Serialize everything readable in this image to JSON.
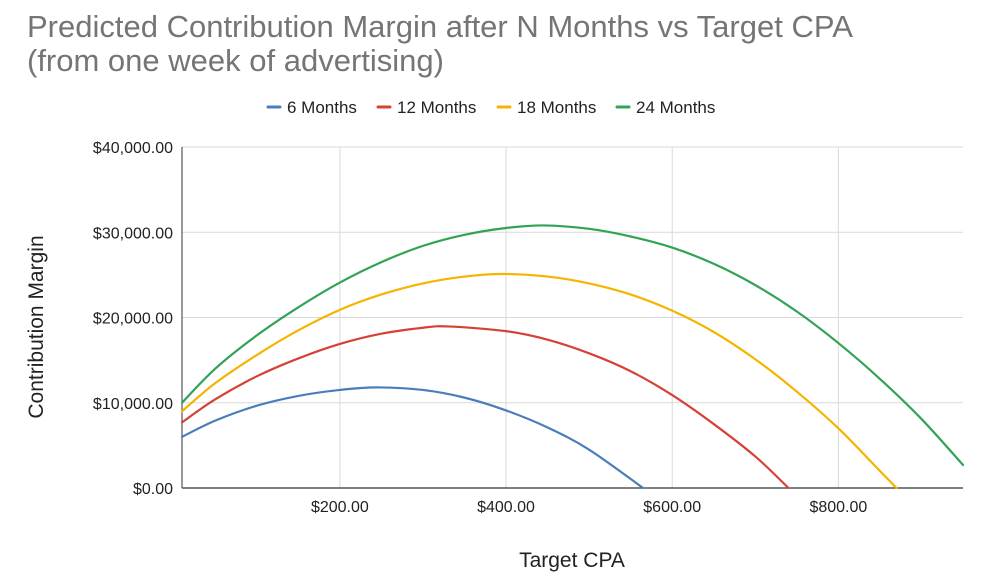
{
  "chart_data": {
    "type": "line",
    "title_lines": [
      "Predicted Contribution Margin after N Months vs Target CPA",
      "(from one week of advertising)"
    ],
    "xlabel": "Target CPA",
    "ylabel": "Contribution Margin",
    "xlim": [
      10,
      950
    ],
    "ylim": [
      0,
      40000
    ],
    "x_ticks": [
      200,
      400,
      600,
      800
    ],
    "x_tick_labels": [
      "$200.00",
      "$400.00",
      "$600.00",
      "$800.00"
    ],
    "y_ticks": [
      0,
      10000,
      20000,
      30000,
      40000
    ],
    "y_tick_labels": [
      "$0.00",
      "$10,000.00",
      "$20,000.00",
      "$30,000.00",
      "$40,000.00"
    ],
    "grid": true,
    "legend_position": "top",
    "series": [
      {
        "name": "6 Months",
        "color": "#4a7ebb",
        "x": [
          10,
          50,
          100,
          150,
          200,
          245,
          300,
          350,
          400,
          450,
          500,
          565
        ],
        "y": [
          6000,
          7900,
          9650,
          10800,
          11500,
          11800,
          11500,
          10600,
          9100,
          7100,
          4500,
          0
        ]
      },
      {
        "name": "12 Months",
        "color": "#d64136",
        "x": [
          10,
          50,
          100,
          150,
          200,
          250,
          300,
          330,
          400,
          450,
          500,
          550,
          600,
          650,
          700,
          740
        ],
        "y": [
          7700,
          10400,
          13100,
          15200,
          16900,
          18100,
          18800,
          18950,
          18400,
          17400,
          15800,
          13700,
          10900,
          7500,
          3700,
          0
        ]
      },
      {
        "name": "18 Months",
        "color": "#f5b400",
        "x": [
          10,
          50,
          100,
          150,
          200,
          250,
          300,
          350,
          395,
          450,
          500,
          550,
          600,
          650,
          700,
          750,
          800,
          850,
          870
        ],
        "y": [
          9000,
          12300,
          15600,
          18500,
          20900,
          22700,
          24000,
          24800,
          25100,
          24800,
          24000,
          22700,
          20800,
          18300,
          15100,
          11300,
          7000,
          2000,
          0
        ]
      },
      {
        "name": "24 Months",
        "color": "#31a354",
        "x": [
          10,
          50,
          100,
          150,
          200,
          250,
          300,
          350,
          400,
          445,
          500,
          550,
          600,
          650,
          700,
          750,
          800,
          850,
          900,
          950
        ],
        "y": [
          10000,
          14000,
          17900,
          21200,
          24100,
          26500,
          28400,
          29700,
          30500,
          30800,
          30400,
          29500,
          28200,
          26300,
          23800,
          20700,
          17000,
          12800,
          8100,
          2700
        ]
      }
    ]
  }
}
